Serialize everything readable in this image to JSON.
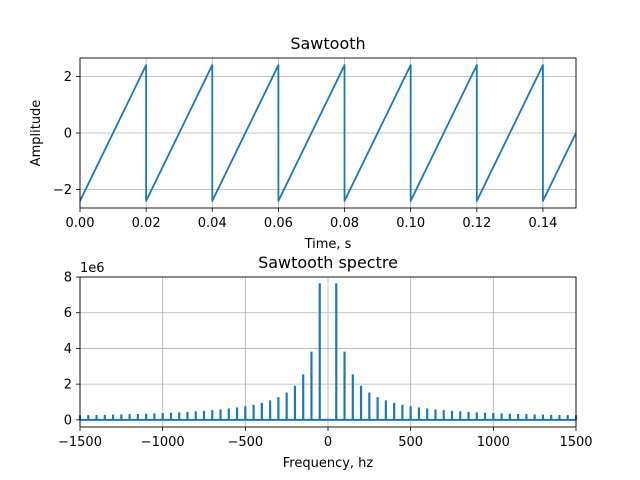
{
  "chart_data": [
    {
      "type": "line",
      "title": "Sawtooth",
      "xlabel": "Time, s",
      "ylabel": "Amplitude",
      "xlim": [
        0,
        0.15
      ],
      "ylim": [
        -2.65,
        2.65
      ],
      "xticks": [
        0,
        0.02,
        0.04,
        0.06,
        0.08,
        0.1,
        0.12,
        0.14
      ],
      "xtick_labels": [
        "0.00",
        "0.02",
        "0.04",
        "0.06",
        "0.08",
        "0.10",
        "0.12",
        "0.14"
      ],
      "yticks": [
        -2,
        0,
        2
      ],
      "ytick_labels": [
        "−2",
        "0",
        "2"
      ],
      "grid": true,
      "series": [
        {
          "color": "#1f77b4",
          "x": [
            0,
            0.02,
            0.02,
            0.04,
            0.04,
            0.06,
            0.06,
            0.08,
            0.08,
            0.1,
            0.1,
            0.12,
            0.12,
            0.14,
            0.14,
            0.15
          ],
          "values": [
            -2.4,
            2.4,
            -2.4,
            2.4,
            -2.4,
            2.4,
            -2.4,
            2.4,
            -2.4,
            2.4,
            -2.4,
            2.4,
            -2.4,
            2.4,
            -2.4,
            0
          ]
        }
      ]
    },
    {
      "type": "line",
      "title": "Sawtooth spectre",
      "xlabel": "Frequency, hz",
      "ylabel": "",
      "y_offset_label": "1e6",
      "xlim": [
        -1500,
        1500
      ],
      "ylim": [
        -400000,
        8000000
      ],
      "xticks": [
        -1500,
        -1000,
        -500,
        0,
        500,
        1000,
        1500
      ],
      "xtick_labels": [
        "−1500",
        "−1000",
        "−500",
        "0",
        "500",
        "1000",
        "1500"
      ],
      "yticks": [
        0,
        2000000,
        4000000,
        6000000,
        8000000
      ],
      "ytick_labels": [
        "0",
        "2",
        "4",
        "6",
        "8"
      ],
      "grid": true,
      "series": [
        {
          "color": "#1f77b4",
          "x": [
            50,
            100,
            150,
            200,
            250,
            300,
            350,
            400,
            450,
            500,
            550,
            600,
            650,
            700,
            750,
            800,
            850,
            900,
            950,
            1000,
            1050,
            1100,
            1150,
            1200,
            1250,
            1300,
            1350,
            1400,
            1450,
            1500
          ],
          "values": [
            7640000,
            3820000,
            2550000,
            1910000,
            1530000,
            1270000,
            1090000,
            955000,
            849000,
            764000,
            695000,
            637000,
            588000,
            546000,
            509000,
            478000,
            449000,
            424000,
            402000,
            382000,
            364000,
            347000,
            332000,
            318000,
            306000,
            294000,
            283000,
            273000,
            263000,
            255000
          ],
          "symmetric": true
        }
      ]
    }
  ]
}
